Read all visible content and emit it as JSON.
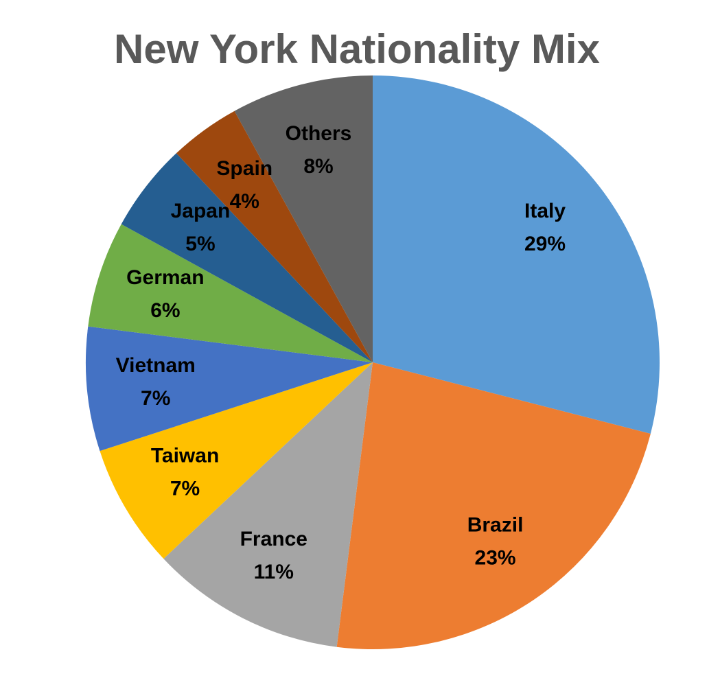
{
  "chart_data": {
    "type": "pie",
    "title": "New York Nationality Mix",
    "categories": [
      "Italy",
      "Brazil",
      "France",
      "Taiwan",
      "Vietnam",
      "German",
      "Japan",
      "Spain",
      "Others"
    ],
    "values": [
      29,
      23,
      11,
      7,
      7,
      6,
      5,
      4,
      8
    ],
    "value_labels": [
      "29%",
      "23%",
      "11%",
      "7%",
      "7%",
      "6%",
      "5%",
      "4%",
      "8%"
    ],
    "colors": [
      "#5b9bd5",
      "#ed7d31",
      "#a5a5a5",
      "#ffc000",
      "#4472c4",
      "#70ad47",
      "#255e91",
      "#9e480e",
      "#636363"
    ]
  }
}
